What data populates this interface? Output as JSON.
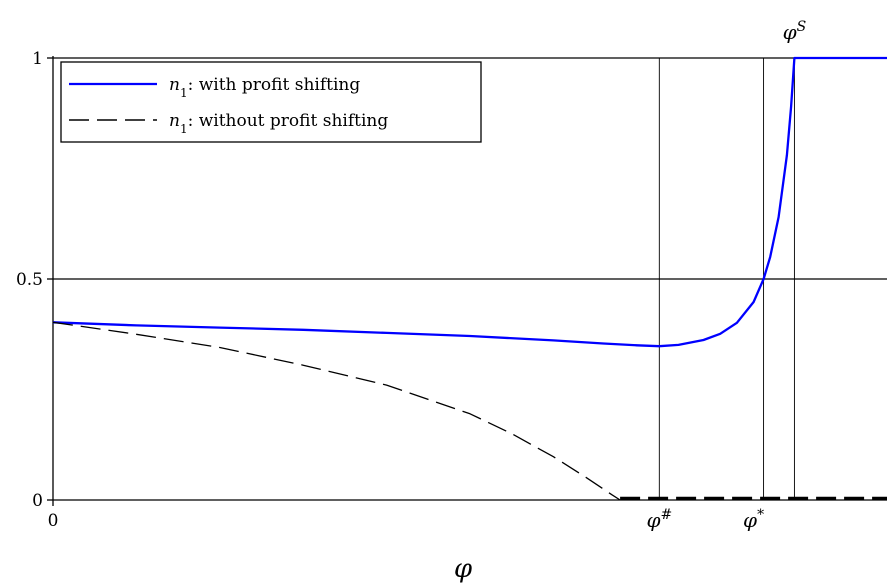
{
  "chart_data": {
    "type": "line",
    "title": "",
    "xlabel": "φ",
    "ylabel": "",
    "xlim": [
      0,
      1
    ],
    "ylim": [
      0,
      1
    ],
    "x_ticks": [
      {
        "value": 0,
        "label": "0"
      }
    ],
    "y_ticks": [
      {
        "value": 0,
        "label": "0"
      },
      {
        "value": 0.5,
        "label": "0.5"
      },
      {
        "value": 1,
        "label": "1"
      }
    ],
    "reference_lines": [
      {
        "orientation": "horizontal",
        "y": 0.5
      },
      {
        "orientation": "horizontal",
        "y": 1
      },
      {
        "orientation": "vertical",
        "x": 0.727,
        "label": "φ#"
      },
      {
        "orientation": "vertical",
        "x": 0.852,
        "label": "φ*"
      },
      {
        "orientation": "vertical",
        "x": 0.889,
        "label": "φS"
      }
    ],
    "legend": {
      "placement": "top-left",
      "entries": [
        {
          "math": "n",
          "sub": "1",
          "text": ":  with profit shifting"
        },
        {
          "math": "n",
          "sub": "1",
          "text": ":  without profit shifting"
        }
      ]
    },
    "series": [
      {
        "color": "#0000ff",
        "style": "solid",
        "x": [
          0,
          0.1,
          0.2,
          0.3,
          0.4,
          0.5,
          0.6,
          0.66,
          0.7,
          0.727,
          0.75,
          0.78,
          0.8,
          0.82,
          0.84,
          0.852,
          0.86,
          0.87,
          0.88,
          0.885,
          0.889,
          0.95,
          1.0
        ],
        "values": [
          0.402,
          0.395,
          0.39,
          0.385,
          0.378,
          0.371,
          0.361,
          0.354,
          0.35,
          0.348,
          0.351,
          0.362,
          0.376,
          0.401,
          0.448,
          0.5,
          0.55,
          0.64,
          0.78,
          0.89,
          1.0,
          1.0,
          1.0
        ]
      },
      {
        "color": "#000000",
        "style": "dashed",
        "x": [
          0,
          0.1,
          0.2,
          0.3,
          0.4,
          0.5,
          0.55,
          0.6,
          0.64,
          0.67,
          0.68
        ],
        "values": [
          0.402,
          0.375,
          0.345,
          0.305,
          0.26,
          0.195,
          0.15,
          0.098,
          0.05,
          0.012,
          0.0
        ]
      },
      {
        "color": "#000000",
        "style": "dashed-thick",
        "x": [
          0.68,
          1.0
        ],
        "values": [
          0.004,
          0.004
        ]
      }
    ]
  }
}
